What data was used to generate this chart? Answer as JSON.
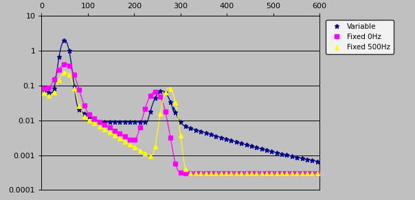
{
  "xlim": [
    0,
    600
  ],
  "ylim_log": [
    0.0001,
    10
  ],
  "xticks": [
    0,
    100,
    200,
    300,
    400,
    500,
    600
  ],
  "background_color": "#c0c0c0",
  "plot_bg_color": "#c0c0c0",
  "grid_color": "#000000",
  "legend_labels": [
    "Variable",
    "Fixed 0Hz",
    "Fixed 500Hz"
  ],
  "line_colors": [
    "#00008b",
    "#ff00ff",
    "#ffff00"
  ],
  "line_markers": [
    "*",
    "s",
    "^"
  ],
  "marker_size_var": 5,
  "marker_size_fixed": 4,
  "linewidth": 0.9
}
